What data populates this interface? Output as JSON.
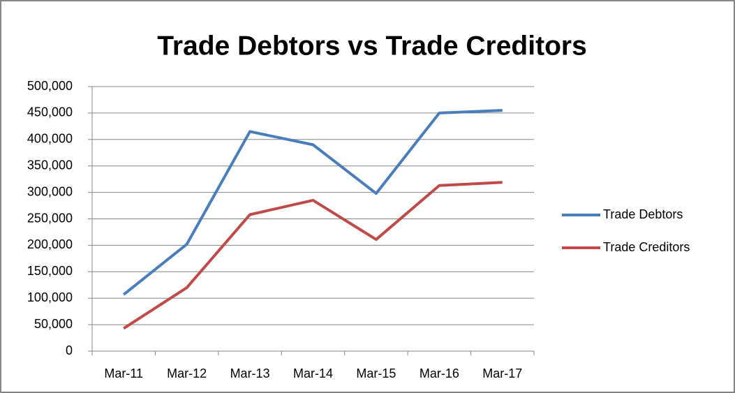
{
  "chart_data": {
    "type": "line",
    "title": "Trade Debtors vs Trade Creditors",
    "categories": [
      "Mar-11",
      "Mar-12",
      "Mar-13",
      "Mar-14",
      "Mar-15",
      "Mar-16",
      "Mar-17"
    ],
    "series": [
      {
        "name": "Trade Debtors",
        "color": "#4a7ebb",
        "values": [
          107000,
          202000,
          415000,
          390000,
          298000,
          450000,
          455000
        ]
      },
      {
        "name": "Trade Creditors",
        "color": "#be4b48",
        "values": [
          43000,
          120000,
          258000,
          285000,
          211000,
          313000,
          319000
        ]
      }
    ],
    "ylim": [
      0,
      500000
    ],
    "yticks": [
      0,
      {
        "value": 50000,
        "label": "50,000"
      },
      {
        "value": 100000,
        "label": "100,000"
      },
      {
        "value": 150000,
        "label": "150,000"
      },
      {
        "value": 200000,
        "label": "200,000"
      },
      {
        "value": 250000,
        "label": "250,000"
      },
      {
        "value": 300000,
        "label": "300,000"
      },
      {
        "value": 350000,
        "label": "350,000"
      },
      {
        "value": 400000,
        "label": "400,000"
      },
      {
        "value": 450000,
        "label": "450,000"
      },
      {
        "value": 500000,
        "label": "500,000"
      }
    ],
    "grid": true,
    "legend": "right"
  }
}
